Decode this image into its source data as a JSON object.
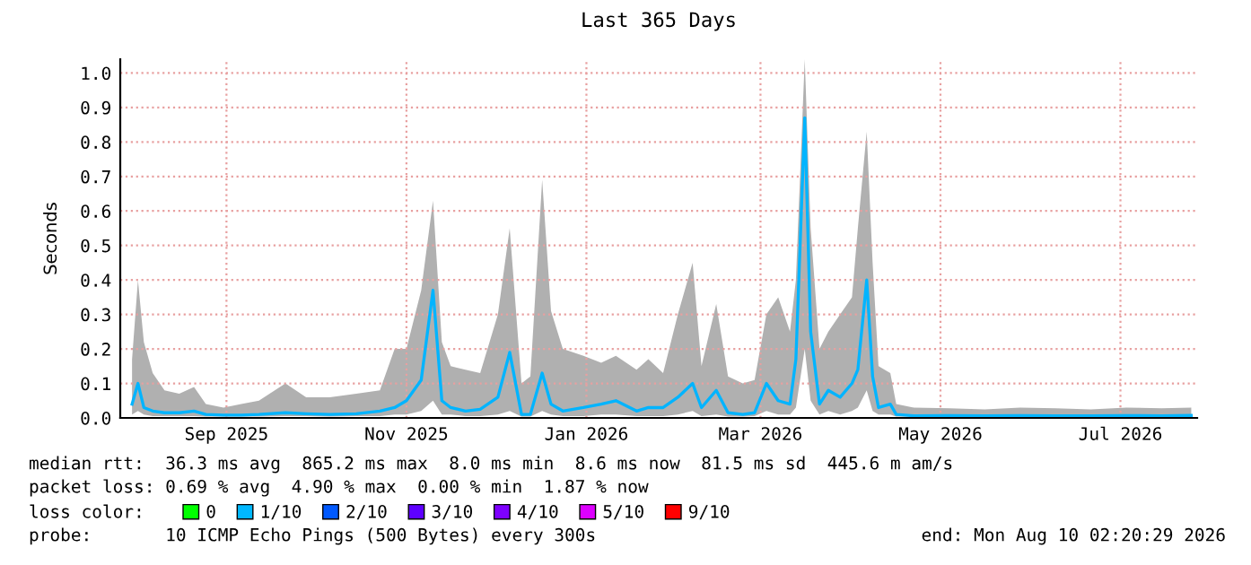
{
  "chart_data": {
    "type": "line",
    "title": "Last 365 Days",
    "ylabel": "Seconds",
    "x": [
      "2025-08-14",
      "2025-08-16",
      "2025-08-18",
      "2025-08-21",
      "2025-08-25",
      "2025-08-30",
      "2025-09-04",
      "2025-09-08",
      "2025-09-14",
      "2025-09-20",
      "2025-09-26",
      "2025-10-05",
      "2025-10-12",
      "2025-10-20",
      "2025-10-29",
      "2025-11-06",
      "2025-11-11",
      "2025-11-15",
      "2025-11-20",
      "2025-11-24",
      "2025-11-27",
      "2025-11-30",
      "2025-12-05",
      "2025-12-10",
      "2025-12-16",
      "2025-12-20",
      "2025-12-24",
      "2025-12-27",
      "2025-12-31",
      "2026-01-03",
      "2026-01-07",
      "2026-01-14",
      "2026-01-20",
      "2026-01-25",
      "2026-02-01",
      "2026-02-05",
      "2026-02-10",
      "2026-02-15",
      "2026-02-20",
      "2026-02-23",
      "2026-02-28",
      "2026-03-04",
      "2026-03-09",
      "2026-03-13",
      "2026-03-17",
      "2026-03-21",
      "2026-03-25",
      "2026-03-27",
      "2026-03-30",
      "2026-04-01",
      "2026-04-04",
      "2026-04-07",
      "2026-04-11",
      "2026-04-15",
      "2026-04-17",
      "2026-04-20",
      "2026-04-22",
      "2026-04-24",
      "2026-04-28",
      "2026-04-30",
      "2026-05-06",
      "2026-05-18",
      "2026-05-30",
      "2026-06-11",
      "2026-06-23",
      "2026-07-05",
      "2026-07-17",
      "2026-07-29",
      "2026-08-08"
    ],
    "series": [
      {
        "color": "#00b4ff",
        "values": [
          0.04,
          0.1,
          0.03,
          0.02,
          0.015,
          0.015,
          0.02,
          0.01,
          0.008,
          0.008,
          0.01,
          0.015,
          0.012,
          0.01,
          0.012,
          0.02,
          0.03,
          0.05,
          0.11,
          0.37,
          0.05,
          0.03,
          0.02,
          0.025,
          0.06,
          0.19,
          0.01,
          0.01,
          0.13,
          0.04,
          0.02,
          0.03,
          0.04,
          0.05,
          0.02,
          0.03,
          0.03,
          0.06,
          0.1,
          0.03,
          0.08,
          0.015,
          0.01,
          0.015,
          0.1,
          0.05,
          0.04,
          0.17,
          0.87,
          0.25,
          0.04,
          0.08,
          0.06,
          0.1,
          0.14,
          0.4,
          0.12,
          0.03,
          0.04,
          0.01,
          0.006,
          0.007,
          0.006,
          0.007,
          0.006,
          0.006,
          0.007,
          0.006,
          0.007
        ],
        "lower": [
          0.01,
          0.02,
          0.01,
          0.005,
          0.005,
          0.005,
          0.005,
          0.004,
          0.004,
          0.004,
          0.004,
          0.005,
          0.005,
          0.004,
          0.005,
          0.005,
          0.01,
          0.01,
          0.02,
          0.05,
          0.01,
          0.01,
          0.005,
          0.005,
          0.01,
          0.02,
          0.004,
          0.004,
          0.02,
          0.01,
          0.005,
          0.005,
          0.01,
          0.01,
          0.005,
          0.005,
          0.005,
          0.01,
          0.02,
          0.005,
          0.01,
          0.004,
          0.004,
          0.005,
          0.02,
          0.01,
          0.01,
          0.03,
          0.2,
          0.05,
          0.01,
          0.02,
          0.01,
          0.02,
          0.03,
          0.08,
          0.02,
          0.01,
          0.01,
          0.004,
          0.004,
          0.004,
          0.004,
          0.004,
          0.004,
          0.004,
          0.004,
          0.004,
          0.004
        ],
        "upper": [
          0.17,
          0.4,
          0.22,
          0.13,
          0.08,
          0.07,
          0.09,
          0.04,
          0.03,
          0.04,
          0.05,
          0.1,
          0.06,
          0.06,
          0.07,
          0.08,
          0.2,
          0.2,
          0.37,
          0.63,
          0.22,
          0.15,
          0.14,
          0.13,
          0.3,
          0.55,
          0.1,
          0.12,
          0.69,
          0.31,
          0.2,
          0.18,
          0.16,
          0.18,
          0.14,
          0.17,
          0.13,
          0.3,
          0.45,
          0.15,
          0.33,
          0.12,
          0.1,
          0.11,
          0.3,
          0.35,
          0.25,
          0.4,
          1.04,
          0.55,
          0.2,
          0.25,
          0.3,
          0.35,
          0.55,
          0.83,
          0.45,
          0.15,
          0.13,
          0.04,
          0.03,
          0.028,
          0.025,
          0.03,
          0.028,
          0.025,
          0.03,
          0.028,
          0.03
        ]
      },
      {
        "name": "0",
        "color": "#00ff00",
        "values": [
          null,
          null,
          null,
          null,
          null,
          null,
          null,
          null,
          null,
          null,
          null,
          null,
          null,
          null,
          null,
          null,
          null,
          null,
          null,
          null,
          null,
          null,
          null,
          null,
          null,
          null,
          null,
          null,
          null,
          null,
          null,
          null,
          null,
          null,
          null,
          null,
          null,
          null,
          null,
          null,
          null,
          null,
          null,
          null,
          null,
          null,
          null,
          null,
          null,
          null,
          null,
          null,
          null,
          null,
          null,
          null,
          null,
          null,
          null,
          null,
          null,
          null,
          null,
          null,
          null,
          null,
          null,
          null,
          null
        ]
      },
      {
        "name": "1/10",
        "color": "#00b8ff",
        "values": [
          null,
          null,
          null,
          null,
          null,
          null,
          null,
          null,
          null,
          null,
          null,
          null,
          null,
          null,
          null,
          null,
          null,
          null,
          null,
          null,
          null,
          null,
          null,
          null,
          null,
          null,
          null,
          null,
          null,
          null,
          null,
          null,
          null,
          null,
          null,
          null,
          null,
          null,
          null,
          null,
          null,
          null,
          null,
          null,
          null,
          null,
          null,
          null,
          null,
          null,
          null,
          null,
          null,
          null,
          null,
          null,
          null,
          null,
          null,
          null,
          null,
          null,
          null,
          null,
          null,
          null,
          null,
          null,
          null
        ]
      },
      {
        "name": "2/10",
        "color": "#0059ff",
        "values": [
          null,
          null,
          null,
          null,
          null,
          null,
          null,
          null,
          null,
          null,
          null,
          null,
          null,
          null,
          null,
          null,
          null,
          null,
          null,
          null,
          null,
          null,
          null,
          null,
          null,
          null,
          null,
          null,
          null,
          null,
          null,
          null,
          null,
          null,
          null,
          null,
          null,
          null,
          null,
          null,
          null,
          null,
          null,
          null,
          null,
          null,
          null,
          null,
          null,
          null,
          null,
          null,
          null,
          null,
          null,
          null,
          null,
          null,
          null,
          null,
          null,
          null,
          null,
          null,
          null,
          null,
          null,
          null,
          null
        ]
      },
      {
        "name": "3/10",
        "color": "#5e00ff",
        "values": [
          null,
          null,
          null,
          null,
          null,
          null,
          null,
          null,
          null,
          null,
          null,
          null,
          null,
          null,
          null,
          null,
          null,
          null,
          null,
          null,
          null,
          null,
          null,
          null,
          null,
          null,
          null,
          null,
          null,
          null,
          null,
          null,
          null,
          null,
          null,
          null,
          null,
          null,
          null,
          null,
          null,
          null,
          null,
          null,
          null,
          null,
          null,
          null,
          null,
          null,
          null,
          null,
          null,
          null,
          null,
          null,
          null,
          null,
          null,
          null,
          null,
          null,
          null,
          null,
          null,
          null,
          null,
          null,
          null
        ]
      },
      {
        "name": "4/10",
        "color": "#7e00ff",
        "values": [
          null,
          null,
          null,
          null,
          null,
          null,
          null,
          null,
          null,
          null,
          null,
          null,
          null,
          null,
          null,
          null,
          null,
          null,
          null,
          null,
          null,
          null,
          null,
          null,
          null,
          null,
          null,
          null,
          null,
          null,
          null,
          null,
          null,
          null,
          null,
          null,
          null,
          null,
          null,
          null,
          null,
          null,
          null,
          null,
          null,
          null,
          null,
          null,
          null,
          null,
          null,
          null,
          null,
          null,
          null,
          null,
          null,
          null,
          null,
          null,
          null,
          null,
          null,
          null,
          null,
          null,
          null,
          null,
          null
        ]
      },
      {
        "name": "5/10",
        "color": "#dd00ff",
        "values": [
          null,
          null,
          null,
          null,
          null,
          null,
          null,
          null,
          null,
          null,
          null,
          null,
          null,
          null,
          null,
          null,
          null,
          null,
          null,
          null,
          null,
          null,
          null,
          null,
          null,
          null,
          null,
          null,
          null,
          null,
          null,
          null,
          null,
          null,
          null,
          null,
          null,
          null,
          null,
          null,
          null,
          null,
          null,
          null,
          null,
          null,
          null,
          null,
          null,
          null,
          null,
          null,
          null,
          null,
          null,
          null,
          null,
          null,
          null,
          null,
          null,
          null,
          null,
          null,
          null,
          null,
          null,
          null,
          null
        ]
      },
      {
        "name": "9/10",
        "color": "#ff0000",
        "values": [
          null,
          null,
          null,
          null,
          null,
          null,
          null,
          null,
          null,
          null,
          null,
          null,
          null,
          null,
          null,
          null,
          null,
          null,
          null,
          null,
          null,
          null,
          null,
          null,
          null,
          null,
          null,
          null,
          null,
          null,
          null,
          null,
          null,
          null,
          null,
          null,
          null,
          null,
          null,
          null,
          null,
          null,
          null,
          null,
          null,
          null,
          null,
          null,
          null,
          null,
          null,
          null,
          null,
          null,
          null,
          null,
          null,
          null,
          null,
          null,
          null,
          null,
          null,
          null,
          null,
          null,
          null,
          null,
          null
        ]
      }
    ],
    "legend": "bottom",
    "legend_title": "loss color:",
    "xlim": [
      "2025-08-10",
      "2026-08-10"
    ],
    "xticks": [
      {
        "value": "2025-09-15",
        "label": "Sep 2025"
      },
      {
        "value": "2025-11-15",
        "label": "Nov 2025"
      },
      {
        "value": "2026-01-15",
        "label": "Jan 2026"
      },
      {
        "value": "2026-03-15",
        "label": "Mar 2026"
      },
      {
        "value": "2026-05-15",
        "label": "May 2026"
      },
      {
        "value": "2026-07-15",
        "label": "Jul 2026"
      }
    ],
    "ylim": [
      0,
      1.04
    ],
    "yticks": [
      {
        "value": 0,
        "label": "0.0"
      },
      0.1,
      0.2,
      0.3,
      0.4,
      0.5,
      0.6,
      0.7,
      0.8,
      0.9,
      {
        "value": 1,
        "label": "1.0"
      }
    ],
    "grid": true,
    "annotations": [
      "median rtt:  36.3 ms avg  865.2 ms max  8.0 ms min  8.6 ms now  81.5 ms sd  445.6 m am/s",
      "packet loss: 0.69 % avg  4.90 % max  0.00 % min  1.87 % now",
      "probe:       10 ICMP Echo Pings (500 Bytes) every 300s",
      "end: Mon Aug 10 02:20:29 2026"
    ]
  }
}
